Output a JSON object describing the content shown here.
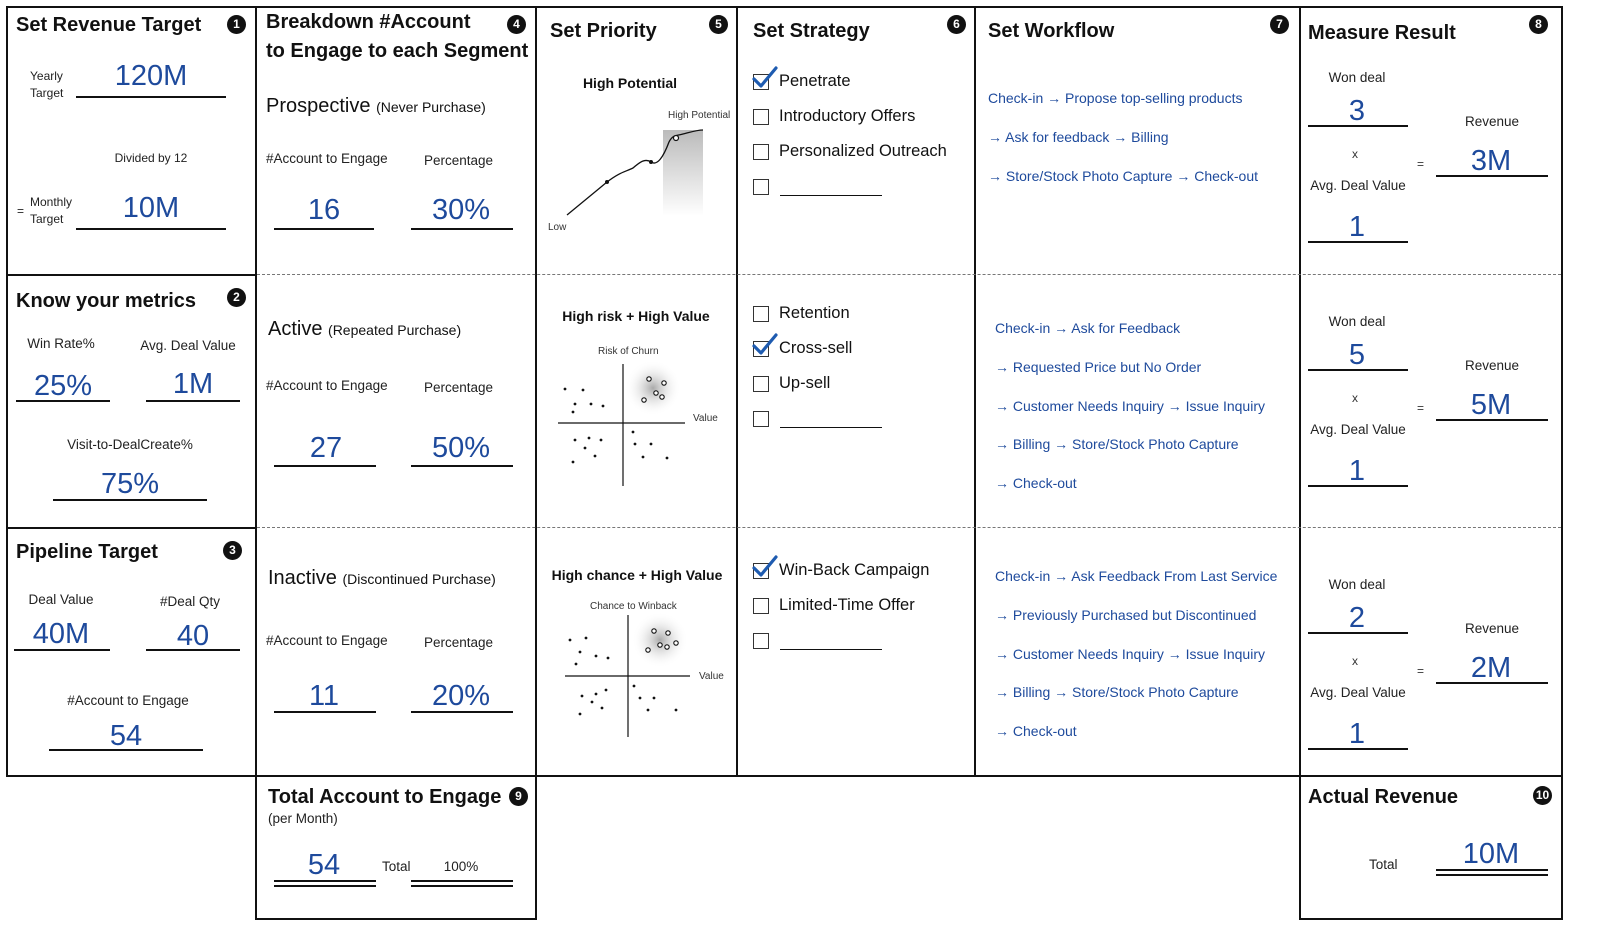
{
  "revenue_target": {
    "title": "Set Revenue Target",
    "num": "1",
    "yearly_label_1": "Yearly",
    "yearly_label_2": "Target",
    "yearly_value": "120M",
    "divided_label": "Divided by 12",
    "eq": "=",
    "monthly_label_1": "Monthly",
    "monthly_label_2": "Target",
    "monthly_value": "10M"
  },
  "metrics": {
    "title": "Know your metrics",
    "num": "2",
    "win_rate_label": "Win Rate%",
    "win_rate_value": "25%",
    "avg_deal_label": "Avg. Deal Value",
    "avg_deal_value": "1M",
    "visit_label": "Visit-to-DealCreate%",
    "visit_value": "75%"
  },
  "pipeline": {
    "title": "Pipeline Target",
    "num": "3",
    "deal_value_label": "Deal Value",
    "deal_value": "40M",
    "deal_qty_label": "#Deal Qty",
    "deal_qty": "40",
    "account_label": "#Account to Engage",
    "account_value": "54"
  },
  "breakdown": {
    "title_1": "Breakdown #Account",
    "title_2": "to Engage to each Segment",
    "num": "4",
    "account_label": "#Account to Engage",
    "percentage_label": "Percentage",
    "segments": [
      {
        "name": "Prospective",
        "note": "(Never Purchase)",
        "accounts": "16",
        "percentage": "30%"
      },
      {
        "name": "Active",
        "note": "(Repeated Purchase)",
        "accounts": "27",
        "percentage": "50%"
      },
      {
        "name": "Inactive",
        "note": "(Discontinued Purchase)",
        "accounts": "11",
        "percentage": "20%"
      }
    ]
  },
  "priority": {
    "title": "Set Priority",
    "num": "5",
    "charts": [
      {
        "title": "High Potential",
        "peak_label": "High Potential",
        "low_label": "Low"
      },
      {
        "title": "High risk + High Value",
        "y_label": "Risk of Churn",
        "x_label": "Value"
      },
      {
        "title": "High chance + High Value",
        "y_label": "Chance to Winback",
        "x_label": "Value"
      }
    ]
  },
  "strategy": {
    "title": "Set Strategy",
    "num": "6",
    "groups": [
      [
        {
          "label": "Penetrate",
          "checked": true
        },
        {
          "label": "Introductory Offers",
          "checked": false
        },
        {
          "label": "Personalized Outreach",
          "checked": false
        },
        {
          "label": "",
          "checked": false
        }
      ],
      [
        {
          "label": "Retention",
          "checked": false
        },
        {
          "label": "Cross-sell",
          "checked": true
        },
        {
          "label": "Up-sell",
          "checked": false
        },
        {
          "label": "",
          "checked": false
        }
      ],
      [
        {
          "label": "Win-Back Campaign",
          "checked": true
        },
        {
          "label": "Limited-Time Offer",
          "checked": false
        },
        {
          "label": "",
          "checked": false
        }
      ]
    ]
  },
  "workflow": {
    "title": "Set Workflow",
    "num": "7",
    "groups": [
      [
        "Check-in → Propose top-selling products",
        "→ Ask for feedback →  Billing",
        "→ Store/Stock Photo Capture → Check-out"
      ],
      [
        "Check-in → Ask for Feedback",
        "→ Requested Price but No Order",
        "→ Customer Needs Inquiry → Issue Inquiry",
        "→  Billing → Store/Stock Photo Capture",
        "→ Check-out"
      ],
      [
        "Check-in → Ask Feedback From Last Service",
        "→ Previously Purchased but Discontinued",
        "→ Customer Needs Inquiry → Issue Inquiry",
        "→ Billing → Store/Stock Photo Capture",
        "→ Check-out"
      ]
    ]
  },
  "measure": {
    "title": "Measure Result",
    "num": "8",
    "won_label": "Won deal",
    "avg_label": "Avg. Deal Value",
    "revenue_label": "Revenue",
    "times": "x",
    "eq": "=",
    "rows": [
      {
        "won": "3",
        "avg": "1",
        "revenue": "3M"
      },
      {
        "won": "5",
        "avg": "1",
        "revenue": "5M"
      },
      {
        "won": "2",
        "avg": "1",
        "revenue": "2M"
      }
    ]
  },
  "total_account": {
    "title": "Total Account to Engage",
    "num": "9",
    "sub": "(per Month)",
    "value": "54",
    "total_label": "Total",
    "percent": "100%"
  },
  "actual_revenue": {
    "title": "Actual Revenue",
    "num": "10",
    "total_label": "Total",
    "value": "10M"
  },
  "colors": {
    "accent": "#1e4a9c",
    "check": "#1e5bb0"
  }
}
